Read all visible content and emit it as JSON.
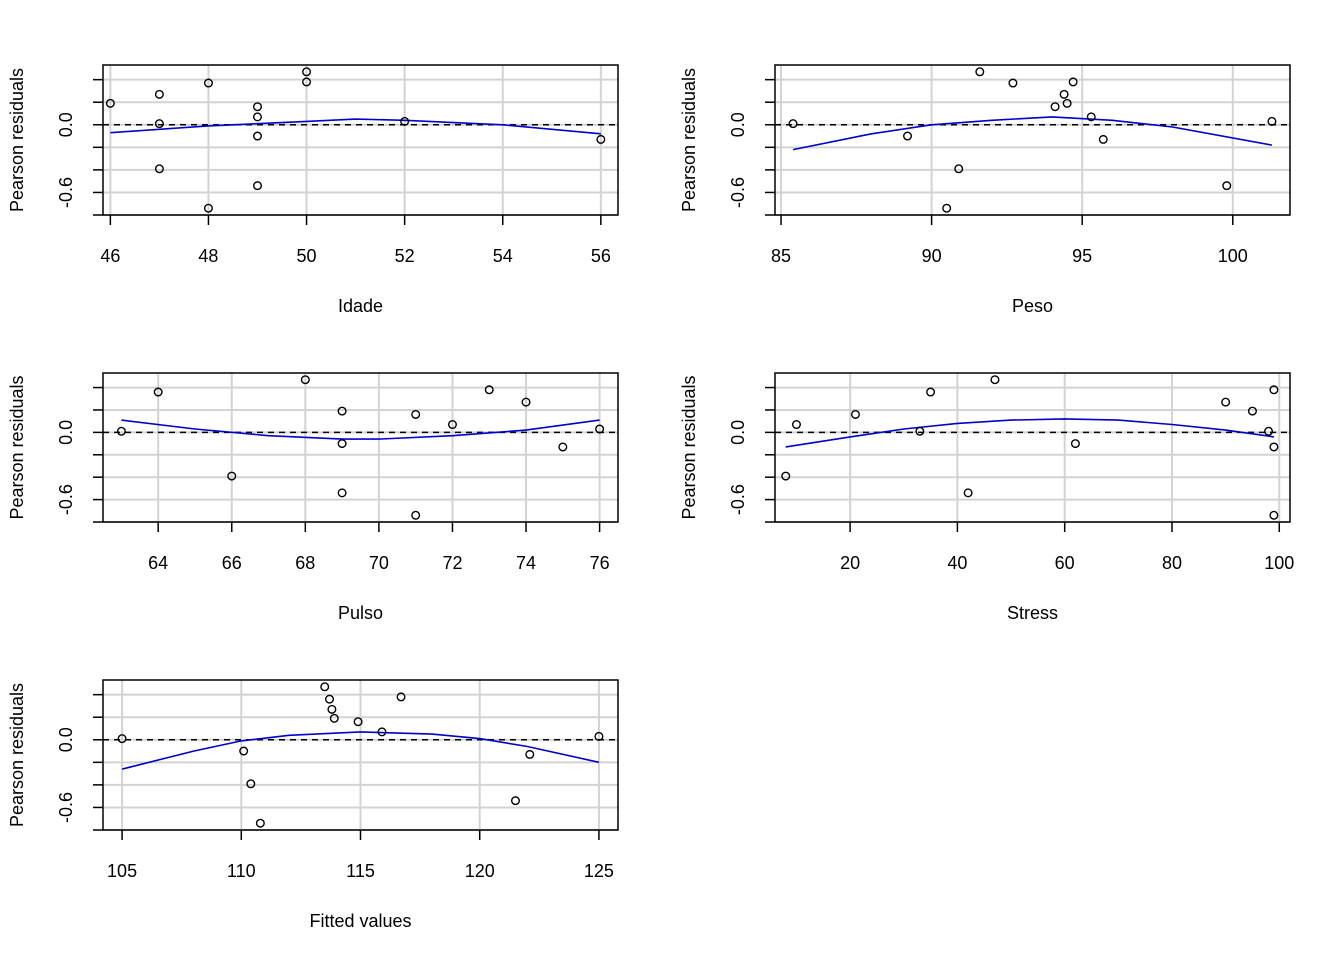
{
  "colors": {
    "grid": "#d3d3d3",
    "smooth": "#0000cd",
    "points": "#000000",
    "reference": "#000000",
    "frame": "#000000"
  },
  "chart_data": [
    {
      "type": "scatter",
      "xlabel": "Idade",
      "ylabel": "Pearson residuals",
      "xlim": [
        45.85,
        56.35
      ],
      "ylim": [
        -0.8,
        0.53
      ],
      "xticks": [
        46,
        48,
        50,
        52,
        54,
        56
      ],
      "xtick_labels": [
        "46",
        "48",
        "50",
        "52",
        "54",
        "56"
      ],
      "yticks": [
        -0.8,
        -0.6,
        -0.4,
        -0.2,
        0.0,
        0.2,
        0.4
      ],
      "ytick_labels": [
        "",
        "-0.6",
        "",
        "",
        "0.0",
        "",
        ""
      ],
      "grid": true,
      "reference_line": 0,
      "points": [
        [
          46,
          0.19
        ],
        [
          47,
          0.27
        ],
        [
          47,
          0.01
        ],
        [
          47,
          -0.39
        ],
        [
          48,
          0.37
        ],
        [
          48,
          -0.74
        ],
        [
          49,
          0.16
        ],
        [
          49,
          0.07
        ],
        [
          49,
          -0.1
        ],
        [
          49,
          -0.54
        ],
        [
          50,
          0.47
        ],
        [
          50,
          0.38
        ],
        [
          52,
          0.03
        ],
        [
          56,
          -0.13
        ]
      ],
      "smooth": [
        [
          46,
          -0.07
        ],
        [
          48,
          -0.01
        ],
        [
          50,
          0.03
        ],
        [
          51,
          0.05
        ],
        [
          52,
          0.04
        ],
        [
          54,
          0.0
        ],
        [
          56,
          -0.08
        ]
      ]
    },
    {
      "type": "scatter",
      "xlabel": "Peso",
      "ylabel": "Pearson residuals",
      "xlim": [
        84.8,
        101.9
      ],
      "ylim": [
        -0.8,
        0.53
      ],
      "xticks": [
        85,
        90,
        95,
        100
      ],
      "xtick_labels": [
        "85",
        "90",
        "95",
        "100"
      ],
      "yticks": [
        -0.8,
        -0.6,
        -0.4,
        -0.2,
        0.0,
        0.2,
        0.4
      ],
      "ytick_labels": [
        "",
        "-0.6",
        "",
        "",
        "0.0",
        "",
        ""
      ],
      "grid": true,
      "reference_line": 0,
      "points": [
        [
          85.4,
          0.01
        ],
        [
          89.2,
          -0.1
        ],
        [
          90.5,
          -0.74
        ],
        [
          90.9,
          -0.39
        ],
        [
          91.6,
          0.47
        ],
        [
          92.7,
          0.37
        ],
        [
          94.1,
          0.16
        ],
        [
          94.4,
          0.27
        ],
        [
          94.5,
          0.19
        ],
        [
          94.7,
          0.38
        ],
        [
          95.3,
          0.07
        ],
        [
          95.7,
          -0.13
        ],
        [
          99.8,
          -0.54
        ],
        [
          101.3,
          0.03
        ]
      ],
      "smooth": [
        [
          85.4,
          -0.22
        ],
        [
          88,
          -0.08
        ],
        [
          90,
          0.0
        ],
        [
          92,
          0.04
        ],
        [
          94,
          0.07
        ],
        [
          96,
          0.04
        ],
        [
          98,
          -0.02
        ],
        [
          101.3,
          -0.18
        ]
      ]
    },
    {
      "type": "scatter",
      "xlabel": "Pulso",
      "ylabel": "Pearson residuals",
      "xlim": [
        62.5,
        76.5
      ],
      "ylim": [
        -0.8,
        0.53
      ],
      "xticks": [
        64,
        66,
        68,
        70,
        72,
        74,
        76
      ],
      "xtick_labels": [
        "64",
        "66",
        "68",
        "70",
        "72",
        "74",
        "76"
      ],
      "yticks": [
        -0.8,
        -0.6,
        -0.4,
        -0.2,
        0.0,
        0.2,
        0.4
      ],
      "ytick_labels": [
        "",
        "-0.6",
        "",
        "",
        "0.0",
        "",
        ""
      ],
      "grid": true,
      "reference_line": 0,
      "points": [
        [
          63,
          0.01
        ],
        [
          64,
          0.36
        ],
        [
          66,
          -0.39
        ],
        [
          68,
          0.47
        ],
        [
          69,
          0.19
        ],
        [
          69,
          -0.1
        ],
        [
          69,
          -0.54
        ],
        [
          71,
          0.16
        ],
        [
          71,
          -0.74
        ],
        [
          72,
          0.07
        ],
        [
          73,
          0.38
        ],
        [
          74,
          0.27
        ],
        [
          75,
          -0.13
        ],
        [
          76,
          0.03
        ]
      ],
      "smooth": [
        [
          63,
          0.11
        ],
        [
          65,
          0.03
        ],
        [
          67,
          -0.03
        ],
        [
          69,
          -0.06
        ],
        [
          70,
          -0.06
        ],
        [
          72,
          -0.03
        ],
        [
          74,
          0.02
        ],
        [
          76,
          0.11
        ]
      ]
    },
    {
      "type": "scatter",
      "xlabel": "Stress",
      "ylabel": "Pearson residuals",
      "xlim": [
        6,
        102
      ],
      "ylim": [
        -0.8,
        0.53
      ],
      "xticks": [
        20,
        40,
        60,
        80,
        100
      ],
      "xtick_labels": [
        "20",
        "40",
        "60",
        "80",
        "100"
      ],
      "yticks": [
        -0.8,
        -0.6,
        -0.4,
        -0.2,
        0.0,
        0.2,
        0.4
      ],
      "ytick_labels": [
        "",
        "-0.6",
        "",
        "",
        "0.0",
        "",
        ""
      ],
      "grid": true,
      "reference_line": 0,
      "points": [
        [
          8,
          -0.39
        ],
        [
          10,
          0.07
        ],
        [
          21,
          0.16
        ],
        [
          33,
          0.01
        ],
        [
          35,
          0.36
        ],
        [
          42,
          -0.54
        ],
        [
          47,
          0.47
        ],
        [
          62,
          -0.1
        ],
        [
          90,
          0.27
        ],
        [
          95,
          0.19
        ],
        [
          98,
          0.01
        ],
        [
          99,
          0.38
        ],
        [
          99,
          -0.13
        ],
        [
          99,
          -0.74
        ]
      ],
      "smooth": [
        [
          8,
          -0.13
        ],
        [
          20,
          -0.04
        ],
        [
          30,
          0.03
        ],
        [
          40,
          0.08
        ],
        [
          50,
          0.11
        ],
        [
          60,
          0.12
        ],
        [
          70,
          0.11
        ],
        [
          80,
          0.07
        ],
        [
          90,
          0.02
        ],
        [
          99,
          -0.04
        ]
      ]
    },
    {
      "type": "scatter",
      "xlabel": "Fitted values",
      "ylabel": "Pearson residuals",
      "xlim": [
        104.2,
        125.8
      ],
      "ylim": [
        -0.8,
        0.53
      ],
      "xticks": [
        105,
        110,
        115,
        120,
        125
      ],
      "xtick_labels": [
        "105",
        "110",
        "115",
        "120",
        "125"
      ],
      "yticks": [
        -0.8,
        -0.6,
        -0.4,
        -0.2,
        0.0,
        0.2,
        0.4
      ],
      "ytick_labels": [
        "",
        "-0.6",
        "",
        "",
        "0.0",
        "",
        ""
      ],
      "grid": true,
      "reference_line": 0,
      "points": [
        [
          105,
          0.01
        ],
        [
          110.1,
          -0.1
        ],
        [
          110.4,
          -0.39
        ],
        [
          110.8,
          -0.74
        ],
        [
          113.5,
          0.47
        ],
        [
          113.7,
          0.36
        ],
        [
          113.8,
          0.27
        ],
        [
          113.9,
          0.19
        ],
        [
          114.9,
          0.16
        ],
        [
          115.9,
          0.07
        ],
        [
          116.7,
          0.38
        ],
        [
          121.5,
          -0.54
        ],
        [
          122.1,
          -0.13
        ],
        [
          125,
          0.03
        ]
      ],
      "smooth": [
        [
          105,
          -0.26
        ],
        [
          108,
          -0.1
        ],
        [
          110,
          -0.01
        ],
        [
          112,
          0.04
        ],
        [
          115,
          0.07
        ],
        [
          118,
          0.05
        ],
        [
          120,
          0.01
        ],
        [
          122,
          -0.06
        ],
        [
          125,
          -0.2
        ]
      ]
    }
  ]
}
